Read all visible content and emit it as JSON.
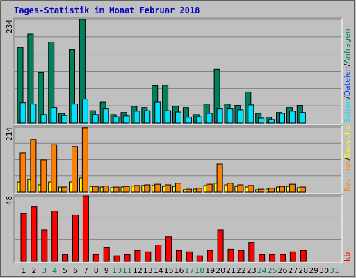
{
  "chart_data": [
    {
      "type": "bar",
      "title": "Tages-Statistik im Monat Februar 2018",
      "ylim": [
        0,
        234
      ],
      "yticks": [
        234
      ],
      "legend": [
        {
          "text": "Seiten",
          "color": "#00e0ff"
        },
        {
          "text": "/",
          "color": "#000000"
        },
        {
          "text": "Dateien",
          "color": "#0040ff"
        },
        {
          "text": "/",
          "color": "#000000"
        },
        {
          "text": "Anfragen",
          "color": "#00805c"
        }
      ],
      "series": [
        {
          "name": "Anfragen",
          "color": "#00805c",
          "values": [
            171,
            201,
            114,
            183,
            22,
            166,
            234,
            28,
            47,
            19,
            24,
            38,
            35,
            84,
            85,
            38,
            35,
            19,
            43,
            122,
            43,
            40,
            70,
            22,
            13,
            24,
            35,
            40,
            null,
            null,
            null
          ]
        },
        {
          "name": "Seiten",
          "color": "#00e0ff",
          "values": [
            46,
            43,
            19,
            35,
            17,
            43,
            54,
            19,
            32,
            14,
            16,
            27,
            28,
            47,
            28,
            25,
            13,
            14,
            22,
            32,
            32,
            30,
            41,
            11,
            8,
            22,
            27,
            24,
            null,
            null,
            null
          ]
        }
      ]
    },
    {
      "type": "bar",
      "ylim": [
        0,
        214
      ],
      "yticks": [
        214
      ],
      "legend": [
        {
          "text": "Rechner",
          "color": "#ff8000"
        },
        {
          "text": "/",
          "color": "#000000"
        },
        {
          "text": "Besuche",
          "color": "#ffff00"
        }
      ],
      "series": [
        {
          "name": "Besuche",
          "color": "#ffff00",
          "values": [
            32,
            41,
            23,
            32,
            16,
            32,
            46,
            18,
            16,
            14,
            16,
            19,
            21,
            21,
            18,
            18,
            7,
            9,
            21,
            28,
            23,
            18,
            16,
            7,
            9,
            16,
            18,
            14,
            null,
            null,
            null
          ]
        },
        {
          "name": "Rechner",
          "color": "#ff8000",
          "values": [
            129,
            173,
            106,
            156,
            16,
            150,
            212,
            18,
            19,
            16,
            18,
            21,
            23,
            25,
            23,
            28,
            9,
            12,
            25,
            92,
            28,
            23,
            21,
            9,
            12,
            18,
            25,
            16,
            null,
            null,
            null
          ]
        }
      ]
    },
    {
      "type": "bar",
      "ylim": [
        0,
        48
      ],
      "yticks": [
        48
      ],
      "legend": [
        {
          "text": "kb",
          "color": "#ff0000"
        }
      ],
      "series": [
        {
          "name": "kb",
          "color": "#ff0000",
          "values": [
            35,
            40,
            23,
            37,
            5,
            34,
            48,
            5,
            10,
            4,
            5,
            8,
            7,
            12,
            18,
            8,
            7,
            4,
            8,
            23,
            9,
            8,
            14,
            5,
            5,
            5,
            7,
            8,
            null,
            null,
            null
          ]
        }
      ],
      "categories": [
        "1",
        "2",
        "3",
        "4",
        "5",
        "6",
        "7",
        "8",
        "9",
        "10",
        "11",
        "12",
        "13",
        "14",
        "15",
        "16",
        "17",
        "18",
        "19",
        "20",
        "21",
        "22",
        "23",
        "24",
        "25",
        "26",
        "27",
        "28",
        "29",
        "30",
        "31"
      ],
      "category_colors": [
        "#000000",
        "#000000",
        "#00805c",
        "#00805c",
        "#000000",
        "#000000",
        "#000000",
        "#000000",
        "#000000",
        "#00805c",
        "#00805c",
        "#000000",
        "#000000",
        "#000000",
        "#000000",
        "#000000",
        "#00805c",
        "#00805c",
        "#000000",
        "#000000",
        "#000000",
        "#000000",
        "#000000",
        "#00805c",
        "#00805c",
        "#000000",
        "#000000",
        "#000000",
        "#000000",
        "#000000",
        "#00805c"
      ]
    }
  ]
}
